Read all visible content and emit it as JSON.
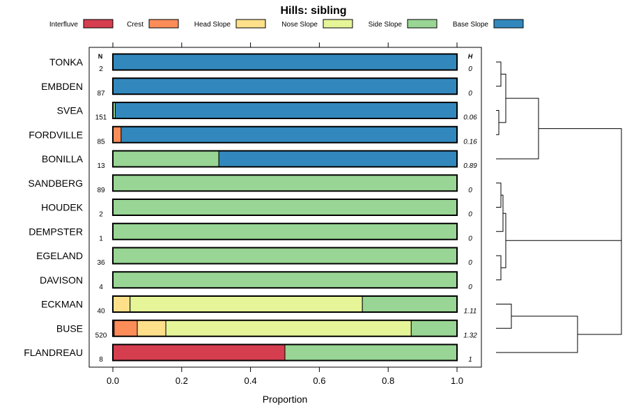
{
  "chart_data": {
    "type": "bar",
    "subtype": "stacked-horizontal-proportion",
    "title": "Hills: sibling",
    "xlabel": "Proportion",
    "ylabel": "",
    "xlim": [
      0,
      1
    ],
    "x_ticks": [
      0.0,
      0.2,
      0.4,
      0.6,
      0.8,
      1.0
    ],
    "x_tick_labels": [
      "0.0",
      "0.2",
      "0.4",
      "0.6",
      "0.8",
      "1.0"
    ],
    "n_header": "N",
    "h_header": "H",
    "legend_position": "top",
    "legend": [
      {
        "name": "Interfluve",
        "color": "#D53E4F"
      },
      {
        "name": "Crest",
        "color": "#FC8D59"
      },
      {
        "name": "Head Slope",
        "color": "#FEE08B"
      },
      {
        "name": "Nose Slope",
        "color": "#E6F598"
      },
      {
        "name": "Side Slope",
        "color": "#99D594"
      },
      {
        "name": "Base Slope",
        "color": "#3288BD"
      }
    ],
    "rows": [
      {
        "name": "TONKA",
        "n": "2",
        "h": "0",
        "values": [
          0,
          0,
          0,
          0,
          0,
          1
        ]
      },
      {
        "name": "EMBDEN",
        "n": "87",
        "h": "0",
        "values": [
          0,
          0,
          0,
          0,
          0,
          1
        ]
      },
      {
        "name": "SVEA",
        "n": "151",
        "h": "0.06",
        "values": [
          0,
          0,
          0,
          0,
          0.007,
          0.993
        ]
      },
      {
        "name": "FORDVILLE",
        "n": "85",
        "h": "0.16",
        "values": [
          0,
          0.024,
          0,
          0,
          0,
          0.976
        ]
      },
      {
        "name": "BONILLA",
        "n": "13",
        "h": "0.89",
        "values": [
          0,
          0,
          0,
          0,
          0.308,
          0.692
        ]
      },
      {
        "name": "SANDBERG",
        "n": "89",
        "h": "0",
        "values": [
          0,
          0,
          0,
          0,
          1,
          0
        ]
      },
      {
        "name": "HOUDEK",
        "n": "2",
        "h": "0",
        "values": [
          0,
          0,
          0,
          0,
          1,
          0
        ]
      },
      {
        "name": "DEMPSTER",
        "n": "1",
        "h": "0",
        "values": [
          0,
          0,
          0,
          0,
          1,
          0
        ]
      },
      {
        "name": "EGELAND",
        "n": "36",
        "h": "0",
        "values": [
          0,
          0,
          0,
          0,
          1,
          0
        ]
      },
      {
        "name": "DAVISON",
        "n": "4",
        "h": "0",
        "values": [
          0,
          0,
          0,
          0,
          1,
          0
        ]
      },
      {
        "name": "ECKMAN",
        "n": "40",
        "h": "1.11",
        "values": [
          0,
          0,
          0.05,
          0.675,
          0.275,
          0
        ]
      },
      {
        "name": "BUSE",
        "n": "520",
        "h": "1.32",
        "values": [
          0.004,
          0.067,
          0.083,
          0.713,
          0.133,
          0
        ]
      },
      {
        "name": "FLANDREAU",
        "n": "8",
        "h": "1",
        "values": [
          0.5,
          0,
          0,
          0,
          0.5,
          0
        ]
      }
    ],
    "dendrogram": "hierarchical clustering of rows shown at right"
  }
}
